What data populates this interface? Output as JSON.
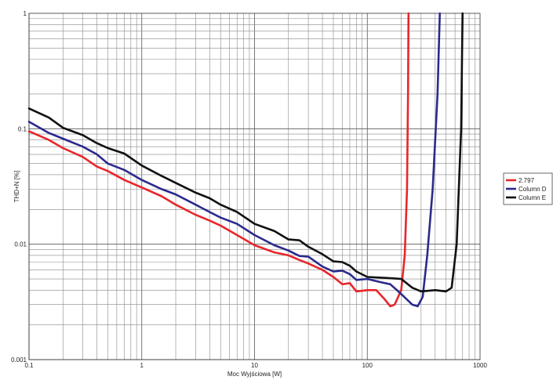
{
  "chart_data": {
    "type": "line",
    "title": "",
    "xlabel": "Moc Wyjściowa [W]",
    "ylabel": "THD+N [%]",
    "x_scale": "log",
    "y_scale": "log",
    "xlim": [
      0.1,
      1000
    ],
    "ylim": [
      0.001,
      1
    ],
    "x_ticks": [
      "0.1",
      "1",
      "10",
      "100",
      "1000"
    ],
    "y_ticks": [
      "0.001",
      "0.01",
      "0.1",
      "1"
    ],
    "grid": true,
    "legend_position": "right",
    "series": [
      {
        "name": "2.797",
        "color": "#e8262b",
        "points": [
          [
            0.1,
            0.095
          ],
          [
            0.15,
            0.08
          ],
          [
            0.2,
            0.068
          ],
          [
            0.3,
            0.057
          ],
          [
            0.4,
            0.047
          ],
          [
            0.5,
            0.043
          ],
          [
            0.7,
            0.036
          ],
          [
            1,
            0.031
          ],
          [
            1.5,
            0.026
          ],
          [
            2,
            0.022
          ],
          [
            3,
            0.018
          ],
          [
            4,
            0.016
          ],
          [
            5,
            0.0145
          ],
          [
            7,
            0.012
          ],
          [
            10,
            0.0098
          ],
          [
            15,
            0.0085
          ],
          [
            20,
            0.008
          ],
          [
            25,
            0.0073
          ],
          [
            30,
            0.0068
          ],
          [
            40,
            0.006
          ],
          [
            50,
            0.0052
          ],
          [
            60,
            0.0045
          ],
          [
            70,
            0.0046
          ],
          [
            80,
            0.0039
          ],
          [
            100,
            0.004
          ],
          [
            120,
            0.004
          ],
          [
            140,
            0.0034
          ],
          [
            160,
            0.0029
          ],
          [
            175,
            0.003
          ],
          [
            200,
            0.004
          ],
          [
            215,
            0.008
          ],
          [
            225,
            0.03
          ],
          [
            230,
            0.2
          ],
          [
            232,
            1
          ]
        ]
      },
      {
        "name": "Column D",
        "color": "#2b2a8c",
        "points": [
          [
            0.1,
            0.115
          ],
          [
            0.15,
            0.092
          ],
          [
            0.2,
            0.082
          ],
          [
            0.3,
            0.07
          ],
          [
            0.4,
            0.06
          ],
          [
            0.5,
            0.05
          ],
          [
            0.7,
            0.044
          ],
          [
            1,
            0.036
          ],
          [
            1.5,
            0.03
          ],
          [
            2,
            0.027
          ],
          [
            3,
            0.022
          ],
          [
            4,
            0.019
          ],
          [
            5,
            0.017
          ],
          [
            7,
            0.015
          ],
          [
            10,
            0.012
          ],
          [
            15,
            0.0098
          ],
          [
            20,
            0.0088
          ],
          [
            25,
            0.0079
          ],
          [
            30,
            0.0078
          ],
          [
            40,
            0.0064
          ],
          [
            50,
            0.0058
          ],
          [
            60,
            0.0059
          ],
          [
            70,
            0.0055
          ],
          [
            80,
            0.0049
          ],
          [
            100,
            0.005
          ],
          [
            130,
            0.0047
          ],
          [
            160,
            0.0045
          ],
          [
            200,
            0.0037
          ],
          [
            250,
            0.003
          ],
          [
            280,
            0.0029
          ],
          [
            310,
            0.0035
          ],
          [
            340,
            0.008
          ],
          [
            380,
            0.03
          ],
          [
            420,
            0.2
          ],
          [
            440,
            1
          ]
        ]
      },
      {
        "name": "Column E",
        "color": "#111111",
        "points": [
          [
            0.1,
            0.15
          ],
          [
            0.15,
            0.125
          ],
          [
            0.2,
            0.102
          ],
          [
            0.3,
            0.088
          ],
          [
            0.4,
            0.075
          ],
          [
            0.5,
            0.068
          ],
          [
            0.7,
            0.061
          ],
          [
            1,
            0.048
          ],
          [
            1.5,
            0.039
          ],
          [
            2,
            0.034
          ],
          [
            3,
            0.028
          ],
          [
            4,
            0.025
          ],
          [
            5,
            0.022
          ],
          [
            7,
            0.019
          ],
          [
            10,
            0.015
          ],
          [
            15,
            0.013
          ],
          [
            20,
            0.011
          ],
          [
            25,
            0.0108
          ],
          [
            30,
            0.0095
          ],
          [
            40,
            0.0082
          ],
          [
            50,
            0.0071
          ],
          [
            60,
            0.007
          ],
          [
            70,
            0.0065
          ],
          [
            80,
            0.0058
          ],
          [
            100,
            0.0052
          ],
          [
            150,
            0.0051
          ],
          [
            200,
            0.005
          ],
          [
            250,
            0.0042
          ],
          [
            300,
            0.0039
          ],
          [
            400,
            0.004
          ],
          [
            500,
            0.0039
          ],
          [
            560,
            0.0042
          ],
          [
            620,
            0.01
          ],
          [
            680,
            0.1
          ],
          [
            700,
            1
          ]
        ]
      }
    ]
  }
}
